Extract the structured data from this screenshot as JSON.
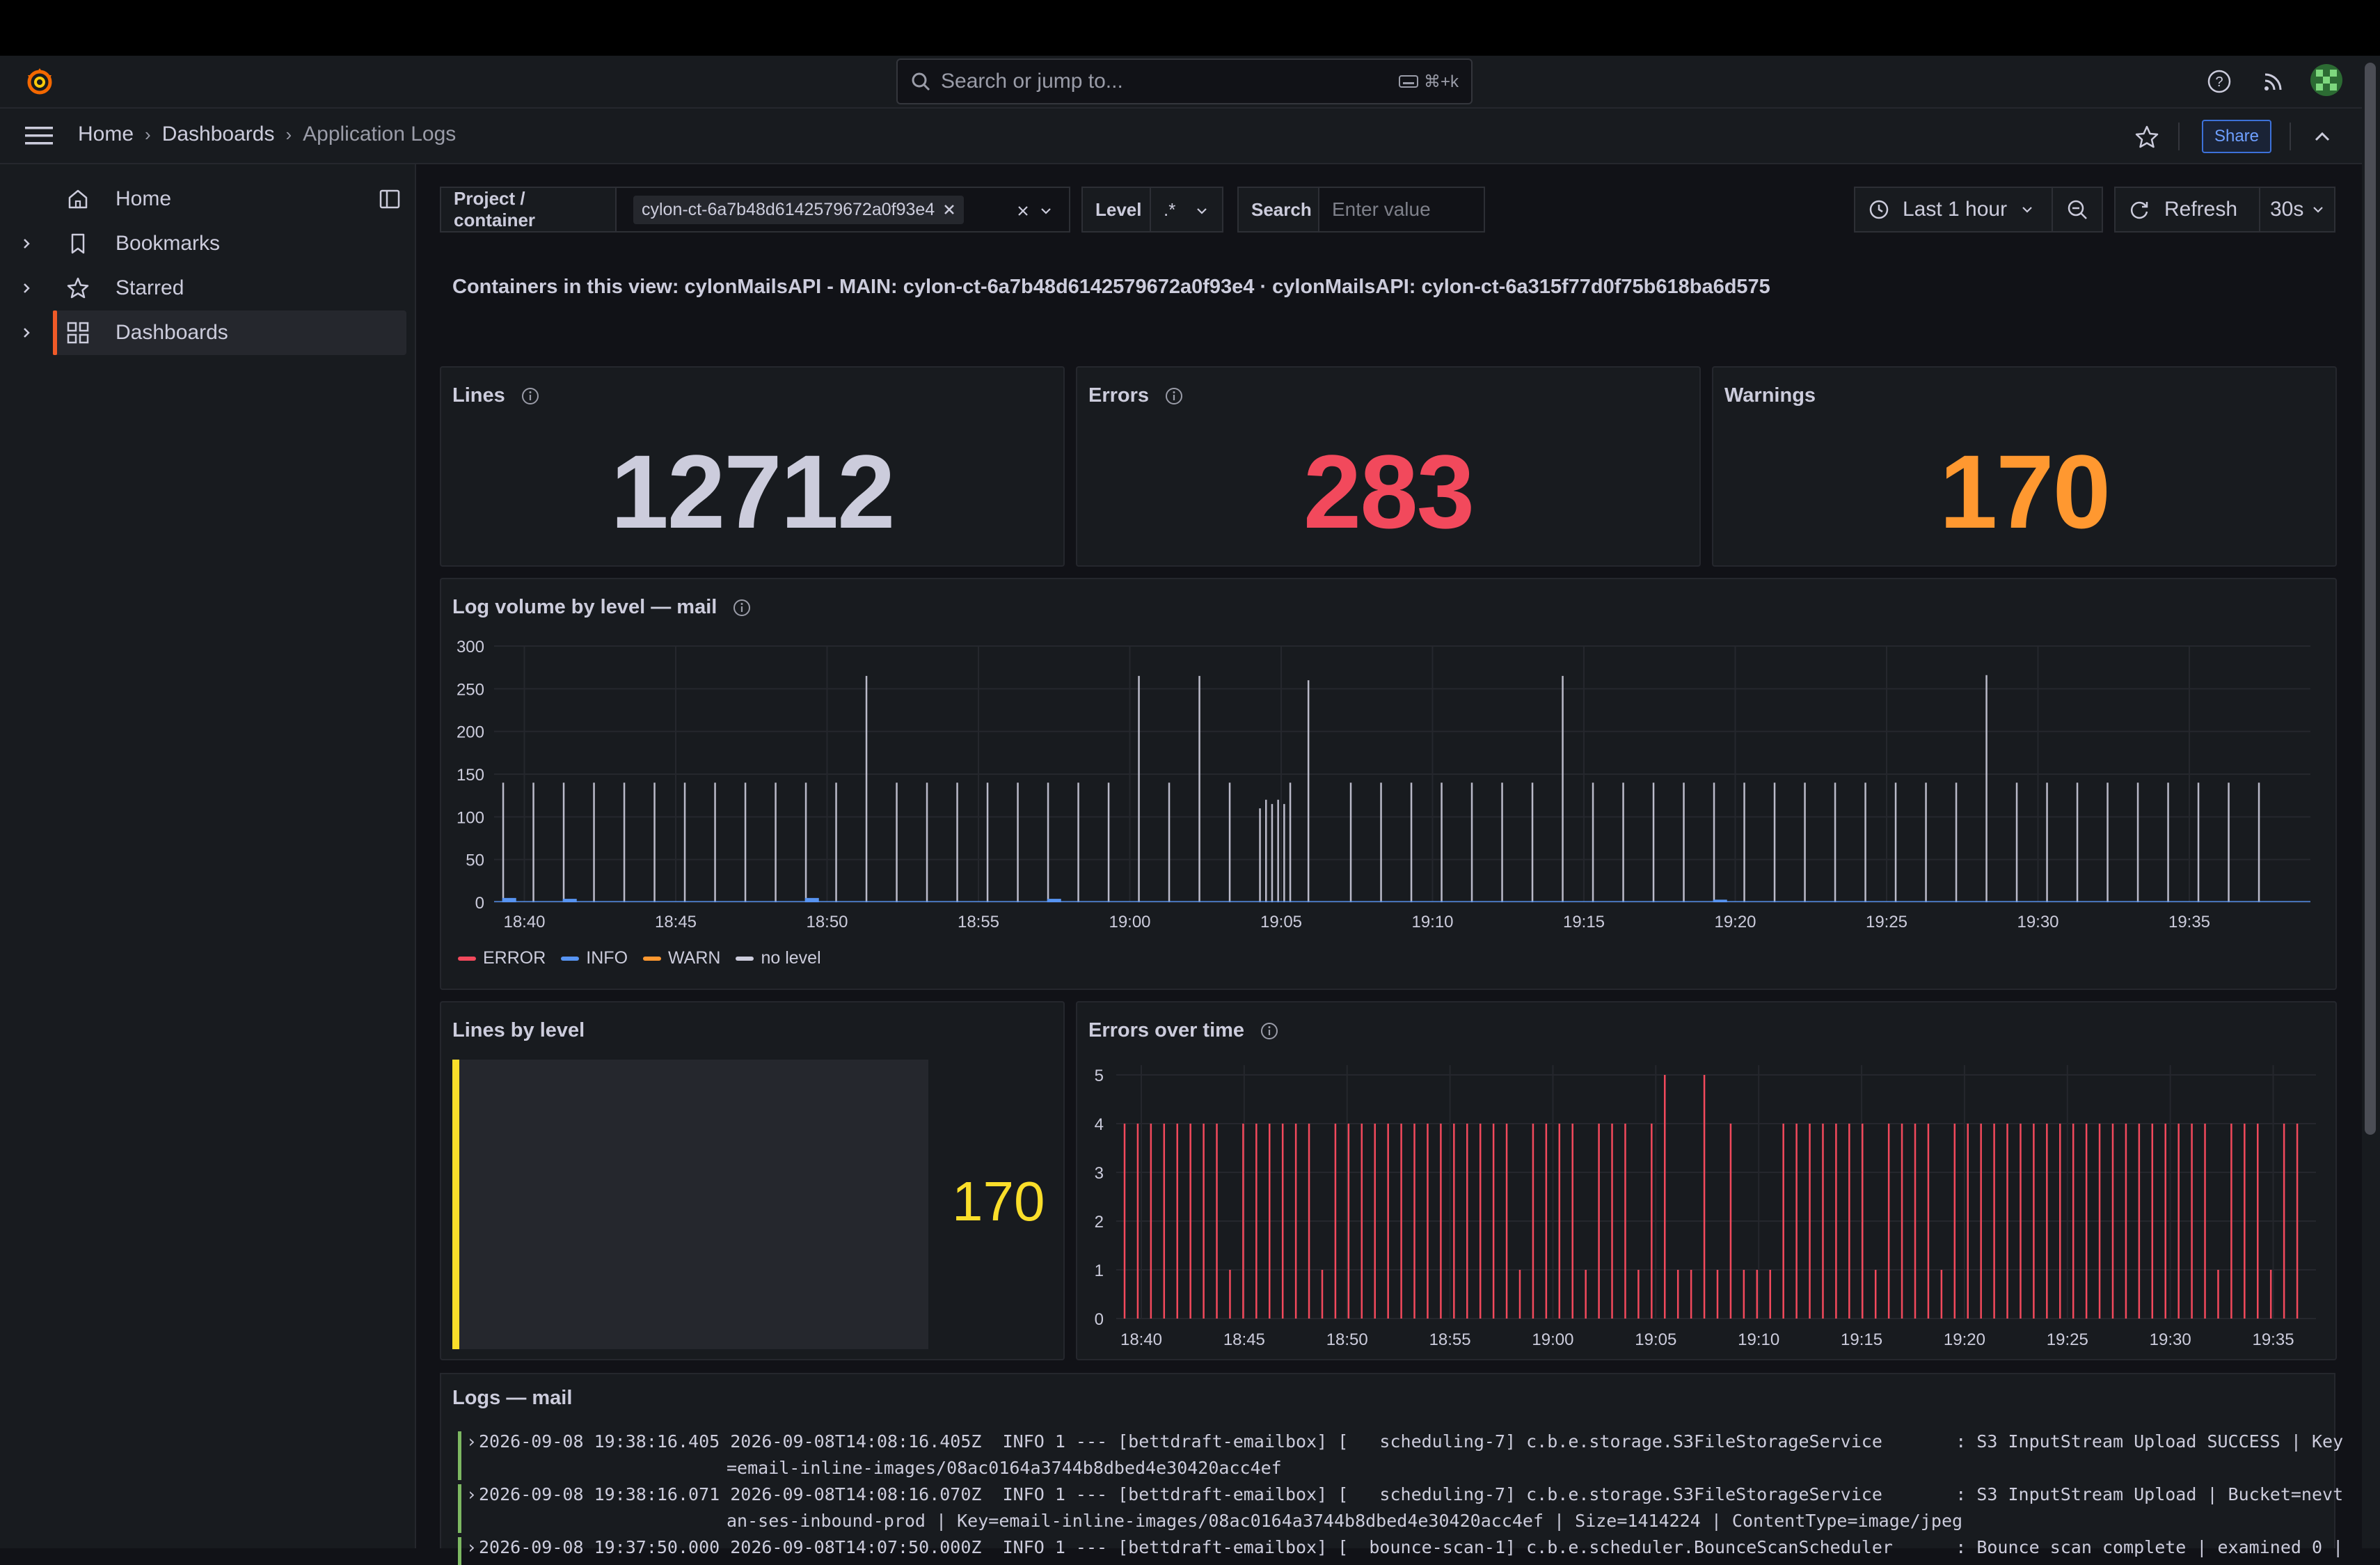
{
  "topnav": {
    "search_placeholder": "Search or jump to...",
    "search_shortcut": "⌘+k",
    "share_label": "Share"
  },
  "breadcrumb": {
    "items": [
      "Home",
      "Dashboards",
      "Application Logs"
    ]
  },
  "sidebar": {
    "items": [
      {
        "label": "Home",
        "icon": "home-icon"
      },
      {
        "label": "Bookmarks",
        "icon": "bookmark-icon"
      },
      {
        "label": "Starred",
        "icon": "star-icon"
      },
      {
        "label": "Dashboards",
        "icon": "dashboards-grid-icon",
        "active": true
      }
    ]
  },
  "variables": {
    "project_label": "Project / container",
    "project_value": "cylon-ct-6a7b48d6142579672a0f93e4",
    "level_label": "Level",
    "level_value": ".*",
    "search_label": "Search",
    "search_placeholder": "Enter value"
  },
  "timepicker": {
    "range": "Last 1 hour",
    "refresh_label": "Refresh",
    "interval": "30s"
  },
  "banner": "Containers in this view: cylonMailsAPI - MAIN: cylon-ct-6a7b48d6142579672a0f93e4 · cylonMailsAPI: cylon-ct-6a315f77d0f75b618ba6d575",
  "stats": {
    "lines": {
      "title": "Lines",
      "value": "12712",
      "color": "#ccccdc"
    },
    "errors": {
      "title": "Errors",
      "value": "283",
      "color": "#f2495c"
    },
    "warnings": {
      "title": "Warnings",
      "value": "170",
      "color": "#ff9830"
    }
  },
  "panels": {
    "volume_title": "Log volume by level — mail",
    "lines_by_level_title": "Lines by level",
    "lines_by_level_value": "170",
    "errors_title": "Errors over time",
    "logs_title": "Logs — mail"
  },
  "colors": {
    "error": "#f2495c",
    "info": "#5794f2",
    "warn": "#ff9830",
    "nolevel": "#ccccdc",
    "accent": "#f05a28",
    "bar_gauge": "#fade2a"
  },
  "chart_data": [
    {
      "type": "bar",
      "title": "Log volume by level — mail",
      "x_ticks": [
        "18:40",
        "18:45",
        "18:50",
        "18:55",
        "19:00",
        "19:05",
        "19:10",
        "19:15",
        "19:20",
        "19:25",
        "19:30",
        "19:35"
      ],
      "y_ticks": [
        0,
        50,
        100,
        150,
        200,
        250,
        300
      ],
      "ylim": [
        0,
        300
      ],
      "legend": [
        "ERROR",
        "INFO",
        "WARN",
        "no level"
      ],
      "legend_placement": "bottom-left",
      "series": [
        {
          "name": "no level",
          "x_minutes": [
            0.3,
            1.3,
            2.3,
            3.3,
            4.3,
            5.3,
            6.3,
            7.3,
            8.3,
            9.3,
            10.3,
            11.3,
            12.3,
            13.3,
            14.3,
            15.3,
            16.3,
            17.3,
            18.3,
            19.3,
            20.3,
            21.3,
            22.3,
            23.3,
            24.3,
            25.3,
            25.5,
            25.7,
            25.9,
            26.1,
            26.3,
            26.9,
            28.3,
            29.3,
            30.3,
            31.3,
            32.3,
            33.3,
            34.3,
            35.3,
            36.3,
            37.3,
            38.3,
            39.3,
            40.3,
            41.3,
            42.3,
            43.3,
            44.3,
            45.3,
            46.3,
            47.3,
            48.3,
            49.3,
            50.3,
            51.3,
            52.3,
            53.3,
            54.3,
            55.3,
            56.3,
            57.3,
            58.3
          ],
          "values": [
            140,
            140,
            140,
            140,
            140,
            140,
            140,
            140,
            140,
            140,
            140,
            140,
            265,
            140,
            140,
            140,
            140,
            140,
            140,
            140,
            140,
            265,
            140,
            265,
            140,
            110,
            120,
            115,
            120,
            115,
            140,
            260,
            140,
            140,
            140,
            140,
            140,
            140,
            140,
            265,
            140,
            140,
            140,
            140,
            140,
            140,
            140,
            140,
            140,
            140,
            140,
            140,
            140,
            266,
            140,
            140,
            140,
            140,
            140,
            140,
            140,
            140,
            140
          ]
        },
        {
          "name": "INFO",
          "note_values": [
            5,
            5,
            5,
            5,
            5
          ],
          "x_minutes": [
            0.5,
            2.5,
            10.5,
            18.5,
            40.5
          ],
          "values": [
            5,
            4,
            5,
            4,
            3
          ]
        }
      ]
    },
    {
      "type": "bar",
      "title": "Errors over time",
      "x_ticks": [
        "18:40",
        "18:45",
        "18:50",
        "18:55",
        "19:00",
        "19:05",
        "19:10",
        "19:15",
        "19:20",
        "19:25",
        "19:30",
        "19:35"
      ],
      "y_ticks": [
        0,
        1,
        2,
        3,
        4,
        5
      ],
      "ylim": [
        0,
        5
      ],
      "series": [
        {
          "name": "ERROR",
          "values": [
            4,
            4,
            4,
            4,
            4,
            4,
            4,
            4,
            1,
            4,
            4,
            4,
            4,
            4,
            4,
            1,
            4,
            4,
            4,
            4,
            4,
            4,
            4,
            4,
            4,
            4,
            4,
            4,
            4,
            4,
            1,
            4,
            4,
            4,
            4,
            1,
            4,
            4,
            4,
            1,
            4,
            5,
            1,
            1,
            5,
            1,
            4,
            1,
            1,
            1,
            4,
            4,
            4,
            4,
            4,
            4,
            4,
            1,
            4,
            4,
            4,
            4,
            1,
            4,
            4,
            4,
            4,
            4,
            4,
            4,
            4,
            4,
            4,
            4,
            4,
            4,
            4,
            4,
            4,
            4,
            4,
            4,
            4,
            1,
            4,
            4,
            4,
            1,
            4,
            4
          ]
        }
      ]
    }
  ],
  "logs": [
    {
      "line1": "2026-09-08 19:38:16.405 2026-09-08T14:08:16.405Z  INFO 1 --- [bettdraft-emailbox] [   scheduling-7] c.b.e.storage.S3FileStorageService       : S3 InputStream Upload SUCCESS | Key",
      "line2": "=email-inline-images/08ac0164a3744b8dbed4e30420acc4ef"
    },
    {
      "line1": "2026-09-08 19:38:16.071 2026-09-08T14:08:16.070Z  INFO 1 --- [bettdraft-emailbox] [   scheduling-7] c.b.e.storage.S3FileStorageService       : S3 InputStream Upload | Bucket=nevt",
      "line2": "an-ses-inbound-prod | Key=email-inline-images/08ac0164a3744b8dbed4e30420acc4ef | Size=1414224 | ContentType=image/jpeg"
    },
    {
      "line1": "2026-09-08 19:37:50.000 2026-09-08T14:07:50.000Z  INFO 1 --- [bettdraft-emailbox] [  bounce-scan-1] c.b.e.scheduler.BounceScanScheduler      : Bounce scan complete | examined 0 |",
      "line2": ""
    }
  ]
}
